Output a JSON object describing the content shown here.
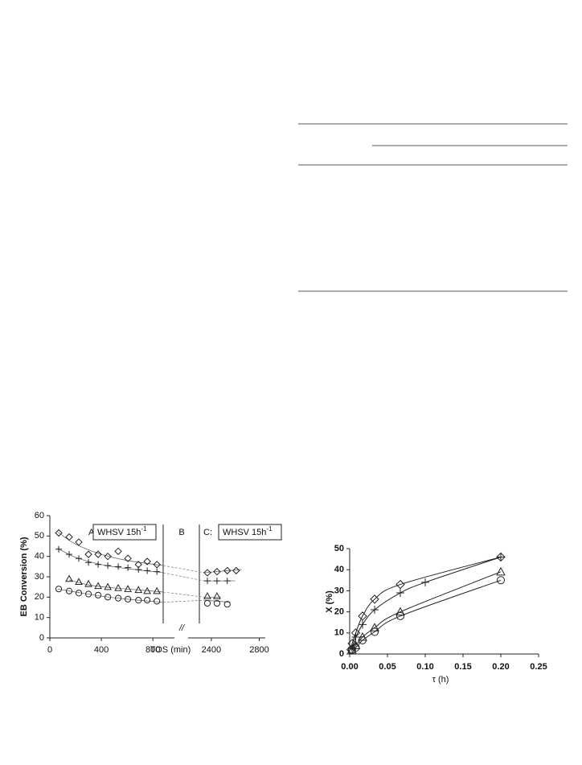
{
  "chart_data": [
    {
      "type": "scatter",
      "x_label": "TOS (min)",
      "y_label": "EB Conversion (%)",
      "ylim": [
        0,
        60
      ],
      "yticks": [
        0,
        10,
        20,
        30,
        40,
        50,
        60
      ],
      "x_segments": [
        {
          "xlim": [
            0,
            880
          ],
          "xticks": [
            0,
            400,
            800
          ]
        },
        {
          "xlim": [
            2300,
            2850
          ],
          "xticks": [
            2400,
            2800
          ]
        }
      ],
      "panels": [
        {
          "label": "A:",
          "box": "WHSV 15h",
          "box_sup": "-1"
        },
        {
          "label": "B"
        },
        {
          "label": "C:",
          "box": "WHSV 15h",
          "box_sup": "-1"
        }
      ],
      "break_mark": "//",
      "series": [
        {
          "marker": "diamond",
          "x": [
            69,
            150,
            225,
            300,
            375,
            450,
            531,
            606,
            688,
            756,
            831,
            2367,
            2447,
            2533,
            2607
          ],
          "values": [
            51.5,
            49.5,
            47,
            41,
            41,
            40,
            42.5,
            39,
            36,
            37.5,
            36,
            32,
            32.5,
            33,
            33
          ],
          "fit_x": [
            60,
            200,
            400,
            600,
            880
          ],
          "fit_values": [
            52,
            46,
            41,
            38,
            35.5
          ],
          "fit2_x": [
            2340,
            2650
          ],
          "fit2_values": [
            32,
            33.5
          ]
        },
        {
          "marker": "plus",
          "x": [
            69,
            150,
            225,
            300,
            375,
            450,
            531,
            606,
            688,
            756,
            831,
            2367,
            2447,
            2533
          ],
          "values": [
            43.5,
            41,
            39,
            37,
            36,
            35.5,
            35,
            34.5,
            33.5,
            33,
            32.5,
            28,
            28,
            28
          ],
          "fit_x": [
            60,
            200,
            400,
            600,
            880
          ],
          "fit_values": [
            44,
            39.5,
            36,
            34,
            32
          ],
          "fit2_x": [
            2340,
            2600
          ],
          "fit2_values": [
            28,
            28
          ]
        },
        {
          "marker": "triangle",
          "x": [
            150,
            225,
            300,
            375,
            450,
            531,
            606,
            688,
            756,
            831,
            2367,
            2447
          ],
          "values": [
            29,
            27.5,
            26.5,
            25.5,
            25,
            24.5,
            24,
            23.5,
            23,
            23,
            20.5,
            20.5
          ],
          "fit_x": [
            150,
            300,
            500,
            700,
            880
          ],
          "fit_values": [
            28.5,
            26,
            24.5,
            23.5,
            22.5
          ],
          "fit2_x": [
            2340,
            2480
          ],
          "fit2_values": [
            20,
            20
          ]
        },
        {
          "marker": "circle",
          "x": [
            69,
            150,
            225,
            300,
            375,
            450,
            531,
            606,
            688,
            756,
            831,
            2367,
            2447,
            2533
          ],
          "values": [
            24,
            23,
            22,
            21.5,
            21,
            20,
            19.5,
            19,
            18.5,
            18.5,
            18,
            17,
            17,
            16.5
          ],
          "fit_x": [
            60,
            200,
            400,
            600,
            880
          ],
          "fit_values": [
            24,
            22.5,
            20.5,
            19,
            17.5
          ],
          "fit2_x": [
            2340,
            2560
          ],
          "fit2_values": [
            18.5,
            17.5
          ]
        }
      ]
    },
    {
      "type": "scatter",
      "x_label": "τ (h)",
      "y_label": "X (%)",
      "xlim": [
        0,
        0.25
      ],
      "xticks": [
        {
          "value": 0,
          "label": "0.00"
        },
        {
          "value": 0.05,
          "label": "0.05"
        },
        {
          "value": 0.1,
          "label": "0.10"
        },
        {
          "value": 0.15,
          "label": "0.15"
        },
        {
          "value": 0.2,
          "label": "0.20"
        },
        {
          "value": 0.25,
          "label": "0.25"
        }
      ],
      "ylim": [
        0,
        50
      ],
      "yticks": [
        0,
        10,
        20,
        30,
        40,
        50
      ],
      "series": [
        {
          "marker": "diamond",
          "x": [
            0.0017,
            0.0033,
            0.008,
            0.017,
            0.033,
            0.067,
            0.2
          ],
          "values": [
            2,
            5,
            10,
            18,
            26,
            33,
            46
          ]
        },
        {
          "marker": "plus",
          "x": [
            0.003,
            0.008,
            0.017,
            0.033,
            0.067,
            0.1,
            0.2
          ],
          "values": [
            3,
            8,
            14,
            21,
            29,
            34,
            46
          ]
        },
        {
          "marker": "triangle",
          "x": [
            0.003,
            0.008,
            0.017,
            0.033,
            0.067,
            0.2
          ],
          "values": [
            2,
            4,
            8,
            12.5,
            20,
            39
          ]
        },
        {
          "marker": "circle",
          "x": [
            0.003,
            0.008,
            0.017,
            0.033,
            0.067,
            0.2
          ],
          "values": [
            2,
            3,
            6.5,
            10.5,
            18,
            35
          ]
        }
      ]
    }
  ]
}
